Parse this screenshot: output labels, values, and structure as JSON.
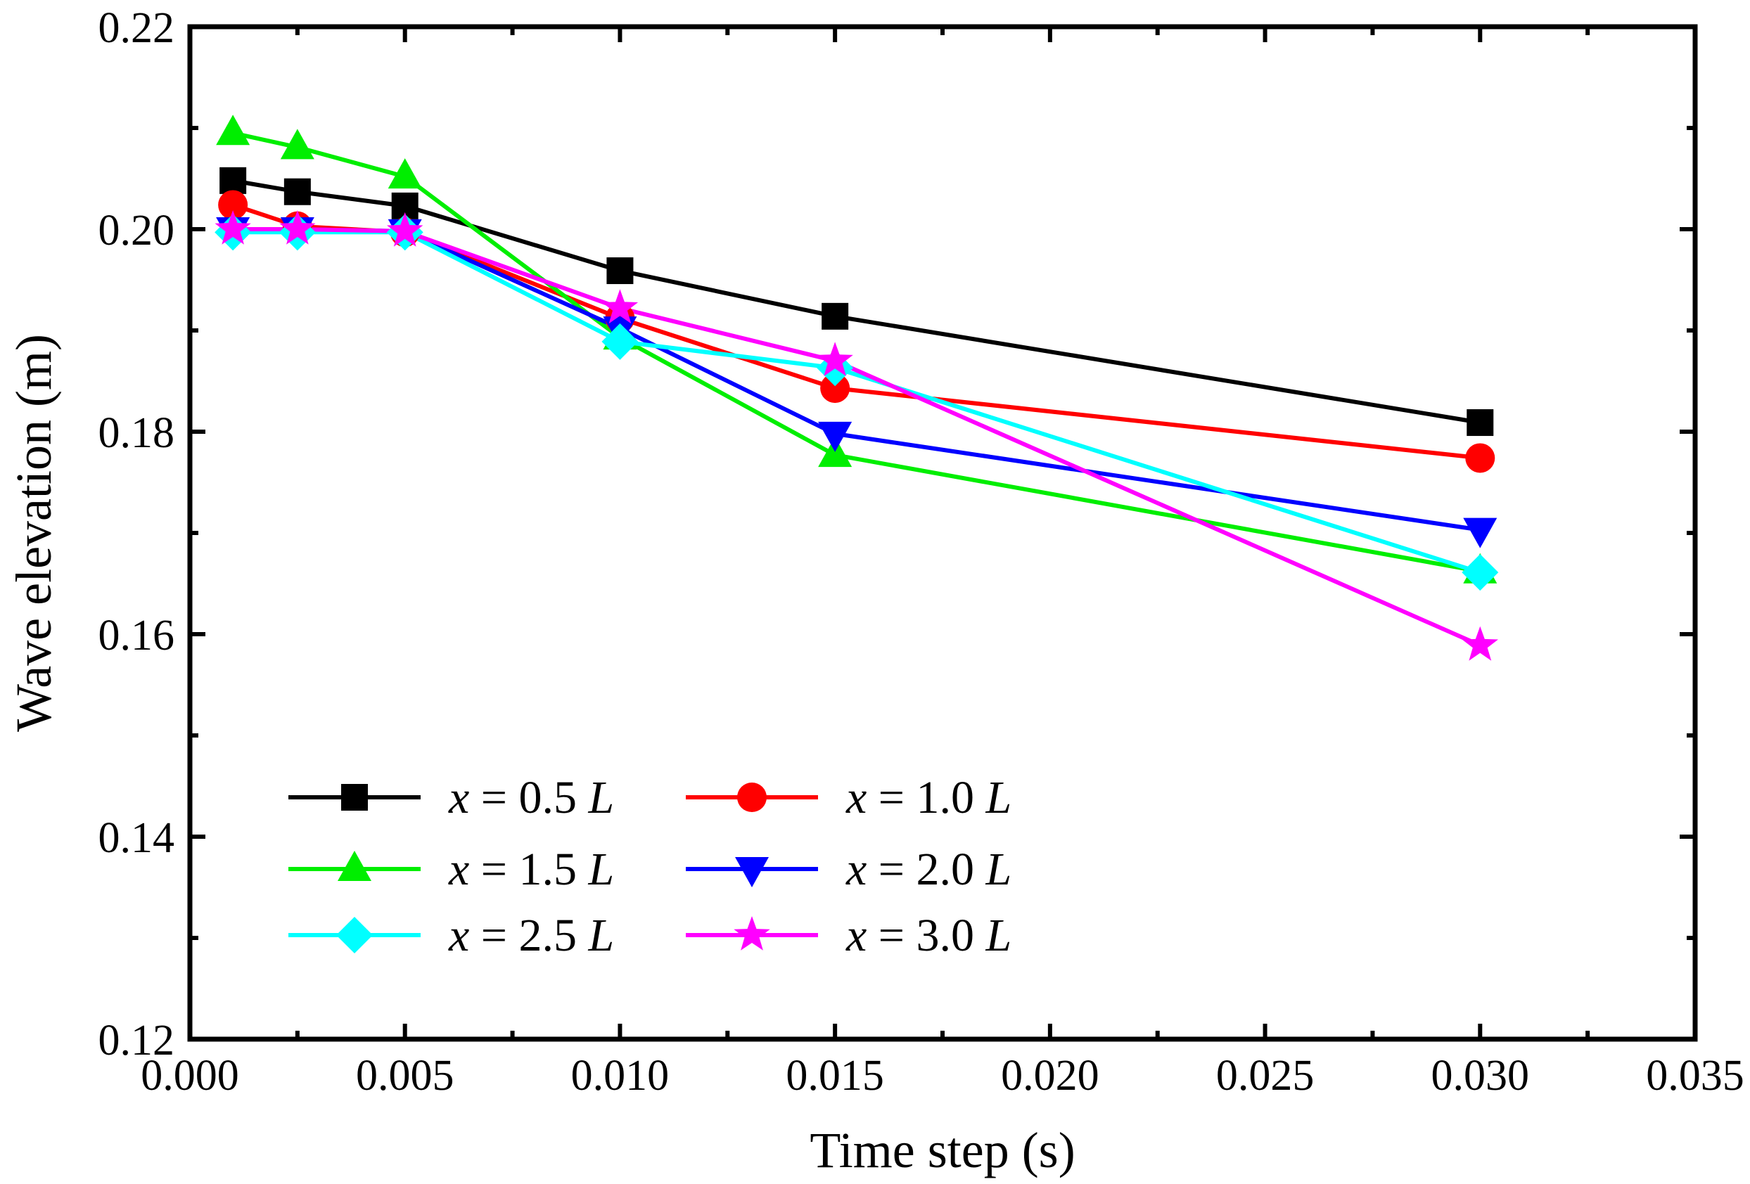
{
  "chart_data": {
    "type": "line",
    "title": "",
    "xlabel": "Time step (s)",
    "ylabel": "Wave elevation (m)",
    "xlim": [
      0.0,
      0.035
    ],
    "ylim": [
      0.12,
      0.22
    ],
    "xticks": [
      "0.000",
      "0.005",
      "0.010",
      "0.015",
      "0.020",
      "0.025",
      "0.030",
      "0.035"
    ],
    "yticks": [
      "0.12",
      "0.14",
      "0.16",
      "0.18",
      "0.20",
      "0.22"
    ],
    "x": [
      0.001,
      0.0025,
      0.005,
      0.01,
      0.015,
      0.03
    ],
    "legend_position": "bottom-left",
    "series": [
      {
        "id": "s05",
        "var": "x",
        "eq": "=",
        "val": "0.5",
        "unit": "L",
        "color": "#000000",
        "marker": "square",
        "values": [
          0.2048,
          0.2037,
          0.2023,
          0.1959,
          0.1914,
          0.1809
        ]
      },
      {
        "id": "s10",
        "var": "x",
        "eq": "=",
        "val": "1.0",
        "unit": "L",
        "color": "#ff0000",
        "marker": "circle",
        "values": [
          0.2024,
          0.2003,
          0.1997,
          0.1912,
          0.1843,
          0.1774
        ]
      },
      {
        "id": "s15",
        "var": "x",
        "eq": "=",
        "val": "1.5",
        "unit": "L",
        "color": "#00ee00",
        "marker": "triangle-up",
        "values": [
          0.2095,
          0.2081,
          0.2052,
          0.1893,
          0.1777,
          0.1662
        ]
      },
      {
        "id": "s20",
        "var": "x",
        "eq": "=",
        "val": "2.0",
        "unit": "L",
        "color": "#0000ff",
        "marker": "triangle-down",
        "values": [
          0.2,
          0.2,
          0.1998,
          0.1902,
          0.1798,
          0.1703
        ]
      },
      {
        "id": "s25",
        "var": "x",
        "eq": "=",
        "val": "2.5",
        "unit": "L",
        "color": "#00ffff",
        "marker": "diamond",
        "values": [
          0.1997,
          0.1997,
          0.1997,
          0.1889,
          0.1863,
          0.1661
        ]
      },
      {
        "id": "s30",
        "var": "x",
        "eq": "=",
        "val": "3.0",
        "unit": "L",
        "color": "#ff00ff",
        "marker": "star",
        "values": [
          0.2,
          0.2,
          0.1998,
          0.1922,
          0.187,
          0.1589
        ]
      }
    ],
    "legend_order": [
      "s05",
      "s10",
      "s15",
      "s20",
      "s25",
      "s30"
    ]
  }
}
